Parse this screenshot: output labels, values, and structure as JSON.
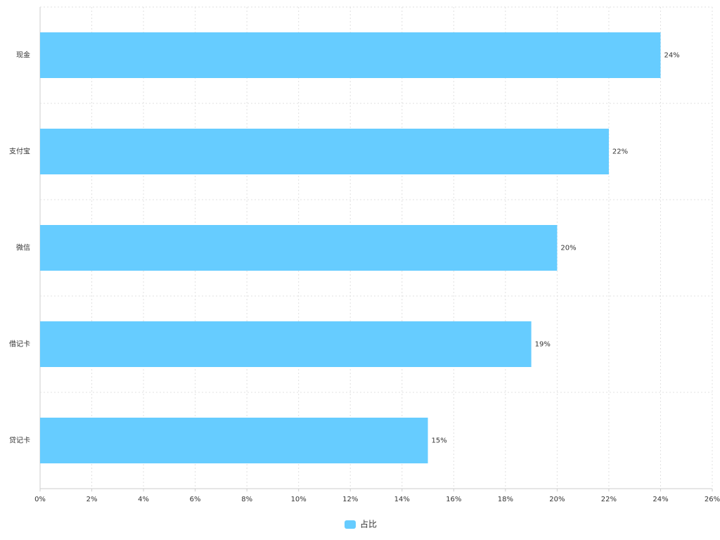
{
  "chart_data": {
    "type": "hbar",
    "categories": [
      "现金",
      "支付宝",
      "微信",
      "借记卡",
      "贷记卡"
    ],
    "series": [
      {
        "name": "占比",
        "color": "#66ccff",
        "values": [
          24,
          22,
          20,
          19,
          15
        ],
        "value_labels": [
          "24%",
          "22%",
          "20%",
          "19%",
          "15%"
        ]
      }
    ],
    "xlim": [
      0,
      26
    ],
    "xticks": [
      {
        "value": 0,
        "label": "0%"
      },
      {
        "value": 2,
        "label": "2%"
      },
      {
        "value": 4,
        "label": "4%"
      },
      {
        "value": 6,
        "label": "6%"
      },
      {
        "value": 8,
        "label": "8%"
      },
      {
        "value": 10,
        "label": "10%"
      },
      {
        "value": 12,
        "label": "12%"
      },
      {
        "value": 14,
        "label": "14%"
      },
      {
        "value": 16,
        "label": "16%"
      },
      {
        "value": 18,
        "label": "18%"
      },
      {
        "value": 20,
        "label": "20%"
      },
      {
        "value": 22,
        "label": "22%"
      },
      {
        "value": 24,
        "label": "24%"
      },
      {
        "value": 26,
        "label": "26%"
      }
    ],
    "grid": true,
    "legend": "bottom"
  }
}
